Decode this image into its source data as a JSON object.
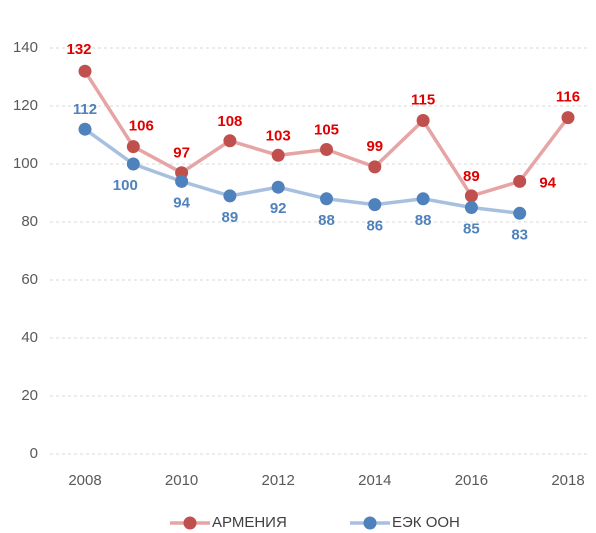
{
  "chart_data": {
    "type": "line",
    "x": [
      2008,
      2009,
      2010,
      2011,
      2012,
      2013,
      2014,
      2015,
      2016,
      2017,
      2018
    ],
    "series": [
      {
        "name": "АРМЕНИЯ",
        "color": "#c0504d",
        "line_color": "#e6a5a4",
        "label_color": "#e00000",
        "values": [
          132,
          106,
          97,
          108,
          103,
          105,
          99,
          115,
          89,
          94,
          116
        ]
      },
      {
        "name": "ЕЭК ООН",
        "color": "#4f81bd",
        "line_color": "#a7c0e0",
        "label_color": "#4f81bd",
        "values": [
          112,
          100,
          94,
          89,
          92,
          88,
          86,
          88,
          85,
          83,
          null
        ]
      }
    ],
    "xlim": [
      2008,
      2018
    ],
    "xticks": [
      2008,
      2010,
      2012,
      2014,
      2016,
      2018
    ],
    "ylim": [
      0,
      140
    ],
    "yticks": [
      0,
      20,
      40,
      60,
      80,
      100,
      120,
      140
    ],
    "grid": true,
    "legend": "bottom"
  }
}
